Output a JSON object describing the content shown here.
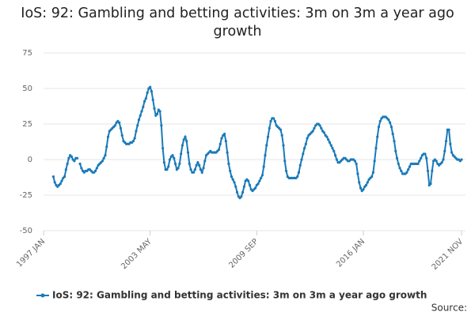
{
  "chart_data": {
    "type": "line",
    "title": "IoS: 92: Gambling and betting activities: 3m on 3m a year ago growth",
    "source_label": "Source:",
    "categories": [
      "1997 JAN",
      null,
      null,
      null,
      null,
      null,
      null,
      null,
      null,
      null,
      null,
      null,
      null,
      null,
      null,
      null,
      null,
      null,
      null,
      null,
      null,
      null,
      null,
      null,
      null,
      null,
      null,
      null,
      null,
      null,
      null,
      null,
      null,
      null,
      null,
      null,
      null,
      null,
      null,
      null,
      null,
      null,
      null,
      null,
      null,
      null,
      null,
      null,
      null,
      null,
      null,
      null,
      null,
      null,
      null,
      null,
      null,
      null,
      null,
      null,
      null,
      null,
      null,
      null,
      null,
      null,
      null,
      null,
      null,
      null,
      null,
      null,
      null,
      null,
      null,
      null,
      "2003 MAY",
      null,
      null,
      null,
      null,
      null,
      null,
      null,
      null,
      null,
      null,
      null,
      null,
      null,
      null,
      null,
      null,
      null,
      null,
      null,
      null,
      null,
      null,
      null,
      null,
      null,
      null,
      null,
      null,
      null,
      null,
      null,
      null,
      null,
      null,
      null,
      null,
      null,
      null,
      null,
      null,
      null,
      null,
      null,
      null,
      null,
      null,
      null,
      null,
      null,
      null,
      null,
      null,
      null,
      null,
      null,
      null,
      null,
      null,
      null,
      null,
      null,
      null,
      null,
      null,
      null,
      null,
      null,
      null,
      null,
      null,
      null,
      null,
      null,
      null,
      null,
      "2009 SEP",
      null,
      null,
      null,
      null,
      null,
      null,
      null,
      null,
      null,
      null,
      null,
      null,
      null,
      null,
      null,
      null,
      null,
      null,
      null,
      null,
      null,
      null,
      null,
      null,
      null,
      null,
      null,
      null,
      null,
      null,
      null,
      null,
      null,
      null,
      null,
      null,
      null,
      null,
      null,
      null,
      null,
      null,
      null,
      null,
      null,
      null,
      null,
      null,
      null,
      null,
      null,
      null,
      null,
      null,
      null,
      null,
      null,
      null,
      null,
      null,
      null,
      null,
      null,
      null,
      null,
      null,
      null,
      null,
      null,
      null,
      null,
      null,
      null,
      null,
      null,
      "2016 JAN",
      null,
      null,
      null,
      null,
      null,
      null,
      null,
      null,
      null,
      null,
      null,
      null,
      null,
      null,
      null,
      null,
      null,
      null,
      null,
      null,
      null,
      null,
      null,
      null,
      null,
      null,
      null,
      null,
      null,
      null,
      null,
      null,
      null,
      null,
      null,
      null,
      null,
      null,
      null,
      null,
      null,
      null,
      null,
      null,
      null,
      null,
      null,
      null,
      null,
      null,
      null,
      null,
      null,
      null,
      null,
      null,
      null,
      null,
      null,
      null,
      null,
      null,
      null,
      null,
      null,
      null,
      null,
      null,
      null,
      "2021 NOV"
    ],
    "series": [
      {
        "name": "IoS: 92: Gambling and betting activities: 3m on 3m a year ago growth",
        "color": "#1a7ab8",
        "values": [
          null,
          null,
          null,
          null,
          null,
          null,
          null,
          -12,
          -16,
          -18,
          -19,
          -18,
          -17,
          -15,
          -13,
          -12,
          -7,
          -3,
          1,
          3,
          2,
          0,
          -1,
          1,
          1,
          null,
          -3,
          -6,
          -8,
          -9,
          -8,
          -8,
          -7,
          -7,
          -8,
          -9,
          -9,
          -8,
          -6,
          -4,
          -3,
          -2,
          -1,
          1,
          3,
          9,
          16,
          20,
          21,
          22,
          23,
          24,
          26,
          27,
          26,
          22,
          17,
          13,
          12,
          11,
          11,
          11,
          12,
          12,
          13,
          15,
          20,
          24,
          28,
          31,
          34,
          37,
          41,
          43,
          47,
          50,
          51,
          48,
          42,
          36,
          31,
          32,
          35,
          34,
          24,
          8,
          -2,
          -7,
          -7,
          -5,
          0,
          2,
          3,
          1,
          -3,
          -7,
          -6,
          -3,
          4,
          10,
          14,
          16,
          13,
          5,
          -3,
          -7,
          -9,
          -9,
          -7,
          -4,
          -2,
          -4,
          -7,
          -9,
          -6,
          -1,
          3,
          4,
          5,
          6,
          5,
          5,
          5,
          5,
          6,
          7,
          11,
          15,
          17,
          18,
          13,
          5,
          -3,
          -8,
          -12,
          -14,
          -16,
          -19,
          -23,
          -26,
          -27,
          -26,
          -23,
          -19,
          -15,
          -14,
          -15,
          -18,
          -21,
          -22,
          -21,
          -20,
          -18,
          -17,
          -15,
          -13,
          -11,
          -5,
          3,
          10,
          16,
          22,
          27,
          29,
          29,
          27,
          24,
          23,
          22,
          21,
          17,
          10,
          -1,
          -8,
          -12,
          -13,
          -13,
          -13,
          -13,
          -13,
          -13,
          -12,
          -9,
          -4,
          0,
          4,
          8,
          11,
          15,
          17,
          18,
          19,
          20,
          22,
          24,
          25,
          25,
          24,
          22,
          20,
          19,
          17,
          16,
          14,
          12,
          10,
          8,
          6,
          3,
          0,
          -2,
          -2,
          -1,
          0,
          1,
          1,
          0,
          -1,
          -1,
          0,
          0,
          0,
          -1,
          -3,
          -10,
          -16,
          -20,
          -22,
          -21,
          -19,
          -18,
          -16,
          -14,
          -13,
          -12,
          -9,
          -1,
          8,
          16,
          23,
          27,
          29,
          30,
          30,
          30,
          29,
          28,
          26,
          23,
          18,
          13,
          6,
          1,
          -3,
          -6,
          -8,
          -10,
          -10,
          -10,
          -9,
          -7,
          -5,
          -3,
          -3,
          -3,
          -3,
          -3,
          -3,
          -1,
          1,
          3,
          4,
          4,
          1,
          -8,
          -18,
          -17,
          -8,
          -1,
          0,
          -1,
          -3,
          -4,
          -3,
          -2,
          0,
          6,
          13,
          21,
          21,
          11,
          5,
          3,
          2,
          1,
          0,
          0,
          -1,
          0
        ]
      }
    ],
    "ylim": [
      -50,
      75
    ],
    "yticks": [
      -50,
      -25,
      0,
      25,
      50,
      75
    ],
    "grid": true
  }
}
